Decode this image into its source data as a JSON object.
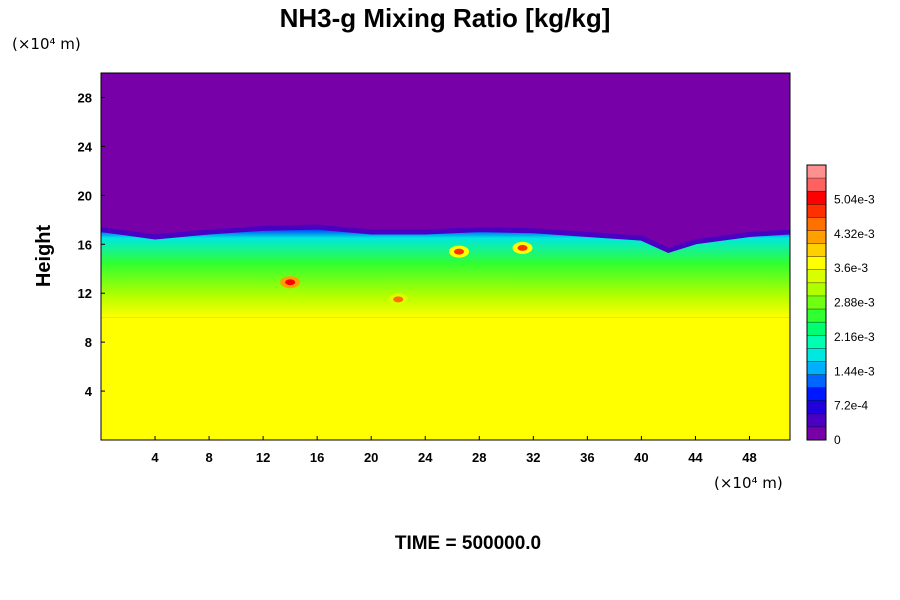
{
  "chart_data": {
    "type": "heatmap",
    "title": "NH3-g Mixing Ratio [kg/kg]",
    "xlabel": "",
    "ylabel": "Height",
    "x_unit": "(×10⁴ m)",
    "y_unit": "(×10⁴ m)",
    "xlim": [
      0,
      51
    ],
    "ylim": [
      0,
      30
    ],
    "x_ticks": [
      4,
      8,
      12,
      16,
      20,
      24,
      28,
      32,
      36,
      40,
      44,
      48
    ],
    "y_ticks": [
      4,
      8,
      12,
      16,
      20,
      24,
      28
    ],
    "colorbar": {
      "range": [
        0,
        0.00576
      ],
      "tick_values": [
        0,
        0.00072,
        0.00144,
        0.00216,
        0.00288,
        0.0036,
        0.00432,
        0.00504
      ],
      "tick_labels": [
        "0",
        "7.2e-4",
        "1.44e-3",
        "2.16e-3",
        "2.88e-3",
        "3.6e-3",
        "4.32e-3",
        "5.04e-3"
      ],
      "colors": [
        "#7700a8",
        "#4a00c2",
        "#2000dd",
        "#0018ff",
        "#0066ff",
        "#00b0ff",
        "#00e8e0",
        "#00ffb0",
        "#00ff70",
        "#30ff30",
        "#70ff10",
        "#b0ff00",
        "#d8ff00",
        "#ffff00",
        "#ffd000",
        "#ffa000",
        "#ff7000",
        "#ff3000",
        "#ff0000",
        "#ff6060",
        "#ff9090"
      ]
    },
    "field": {
      "lower_value": 0.0037,
      "upper_value": 0,
      "mixed_layer_bottom": 10,
      "mixed_layer_top_profile": {
        "x": [
          0,
          4,
          8,
          12,
          16,
          20,
          24,
          28,
          32,
          36,
          40,
          42,
          44,
          48,
          51
        ],
        "y": [
          17.2,
          16.6,
          17.0,
          17.3,
          17.4,
          17.0,
          17.0,
          17.2,
          17.1,
          16.8,
          16.5,
          15.5,
          16.2,
          16.8,
          17.0
        ]
      },
      "hotspots": [
        {
          "x": 14.0,
          "y": 12.9,
          "value": 0.0052
        },
        {
          "x": 26.5,
          "y": 15.4,
          "value": 0.0048
        },
        {
          "x": 31.2,
          "y": 15.7,
          "value": 0.0047
        },
        {
          "x": 22.0,
          "y": 11.5,
          "value": 0.0044
        }
      ]
    }
  },
  "footer": {
    "time_label": "TIME = 500000.0"
  }
}
